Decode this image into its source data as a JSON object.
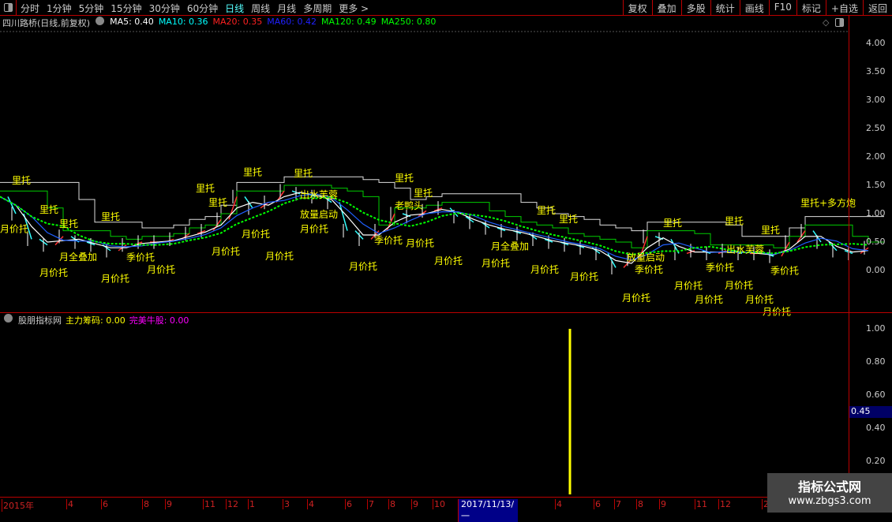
{
  "toolbar": {
    "periods": [
      "分时",
      "1分钟",
      "5分钟",
      "15分钟",
      "30分钟",
      "60分钟",
      "日线",
      "周线",
      "月线",
      "多周期",
      "更多 >"
    ],
    "active_period": "日线",
    "right_buttons": [
      "复权",
      "叠加",
      "多股",
      "统计",
      "画线",
      "F10",
      "标记",
      "+自选",
      "返回"
    ]
  },
  "main_chart": {
    "title": "四川路桥(日线,前复权)",
    "ma": [
      {
        "label": "MA5: 0.40",
        "color": "#ffffff"
      },
      {
        "label": "MA10: 0.36",
        "color": "#00ffff"
      },
      {
        "label": "MA20: 0.35",
        "color": "#ff2020"
      },
      {
        "label": "MA60: 0.42",
        "color": "#2020ff"
      },
      {
        "label": "MA120: 0.49",
        "color": "#00ff00"
      },
      {
        "label": "MA250: 0.80",
        "color": "#00ff00"
      }
    ],
    "y_ticks": [
      "4.00",
      "3.50",
      "3.00",
      "2.50",
      "2.00",
      "1.50",
      "1.00",
      "0.50",
      "0.00"
    ]
  },
  "chart_data": {
    "type": "line",
    "ylim": [
      -0.6,
      4.2
    ],
    "close": [
      1.3,
      1.0,
      0.55,
      0.45,
      0.6,
      0.5,
      0.45,
      0.35,
      0.45,
      0.5,
      0.5,
      0.55,
      0.65,
      0.7,
      0.9,
      1.3,
      1.1,
      1.2,
      1.4,
      1.35,
      1.3,
      1.2,
      0.7,
      0.55,
      0.7,
      1.0,
      0.95,
      1.05,
      1.1,
      0.95,
      0.85,
      0.75,
      0.7,
      0.65,
      0.55,
      0.5,
      0.45,
      0.4,
      0.3,
      0.05,
      0.2,
      0.6,
      0.55,
      0.3,
      0.35,
      0.3,
      0.35,
      0.3,
      0.3,
      0.25,
      0.5,
      0.7,
      0.5,
      0.35,
      0.3,
      0.4
    ],
    "signals": [
      {
        "text": "里托",
        "i": 0.75,
        "p": 1.6
      },
      {
        "text": "里托",
        "i": 2.5,
        "p": 1.08
      },
      {
        "text": "里托",
        "i": 3.75,
        "p": 1.04
      },
      {
        "text": "月价托",
        "i": 0,
        "p": 0.74
      },
      {
        "text": "里托",
        "i": 6.4,
        "p": 0.96
      },
      {
        "text": "里托",
        "i": 12.4,
        "p": 1.46
      },
      {
        "text": "里托",
        "i": 13.2,
        "p": 1.42
      },
      {
        "text": "里托",
        "i": 15.4,
        "p": 1.74
      },
      {
        "text": "里托",
        "i": 18.6,
        "p": 1.72
      },
      {
        "text": "出水芙蓉",
        "i": 19,
        "p": 1.35
      },
      {
        "text": "放量启动",
        "i": 19,
        "p": 1.0
      },
      {
        "text": "月价托",
        "i": 19,
        "p": 0.74
      },
      {
        "text": "月价托",
        "i": 15.3,
        "p": 0.65
      },
      {
        "text": "月价托",
        "i": 16.8,
        "p": 0.68
      },
      {
        "text": "月价托",
        "i": 13.4,
        "p": 0.35
      },
      {
        "text": "季价托",
        "i": 8,
        "p": 0.24
      },
      {
        "text": "月价托",
        "i": 9.3,
        "p": 0.03
      },
      {
        "text": "月价托",
        "i": 2.5,
        "p": -0.03
      },
      {
        "text": "月价托",
        "i": 6.4,
        "p": -0.13
      },
      {
        "text": "月全叠加",
        "i": 3.75,
        "p": 0.25
      },
      {
        "text": "月价托",
        "i": 22.1,
        "p": 0.08
      },
      {
        "text": "季价托",
        "i": 23.7,
        "p": 0.54
      },
      {
        "text": "月价托",
        "i": 25.7,
        "p": 0.49
      },
      {
        "text": "里托",
        "i": 25,
        "p": 1.64
      },
      {
        "text": "里托",
        "i": 26.2,
        "p": 1.58
      },
      {
        "text": "老鸭头",
        "i": 25,
        "p": 1.15
      },
      {
        "text": "月价托",
        "i": 27.5,
        "p": 0.6
      },
      {
        "text": "月全叠加",
        "i": 31.1,
        "p": 0.44
      },
      {
        "text": "月价托",
        "i": 30.5,
        "p": 0.14
      },
      {
        "text": "月价托",
        "i": 33.6,
        "p": 0.03
      },
      {
        "text": "里托",
        "i": 34,
        "p": 1.07
      },
      {
        "text": "里托",
        "i": 35.4,
        "p": 0.92
      },
      {
        "text": "月价托",
        "i": 36.1,
        "p": -0.1
      },
      {
        "text": "月价托",
        "i": 39.4,
        "p": -0.47
      },
      {
        "text": "放量启动",
        "i": 39.7,
        "p": 0.24
      },
      {
        "text": "季价托",
        "i": 40.2,
        "p": 0.03
      },
      {
        "text": "里托",
        "i": 42,
        "p": 0.85
      },
      {
        "text": "月价托",
        "i": 42.7,
        "p": -0.26
      },
      {
        "text": "月价托",
        "i": 44,
        "p": -0.29
      },
      {
        "text": "季价托",
        "i": 44.7,
        "p": 0.06
      },
      {
        "text": "里托",
        "i": 45.9,
        "p": 0.88
      },
      {
        "text": "出水芙蓉",
        "i": 46,
        "p": 0.38
      },
      {
        "text": "月价托",
        "i": 45.9,
        "p": -0.25
      },
      {
        "text": "月价托",
        "i": 47.2,
        "p": -0.29
      },
      {
        "text": "月价托",
        "i": 48.3,
        "p": -0.3
      },
      {
        "text": "季价托",
        "i": 48.8,
        "p": 0.01
      },
      {
        "text": "里托",
        "i": 48.2,
        "p": 0.72
      },
      {
        "text": "里托+多方炮",
        "i": 50.7,
        "p": 1.2
      }
    ],
    "indicator": {
      "bar_index": 36.1,
      "bar_value": 1.0,
      "ylim": [
        0,
        1.05
      ]
    }
  },
  "indicator": {
    "name": "股朋指标网",
    "items": [
      {
        "label": "主力筹码: 0.00",
        "color": "#ffff00"
      },
      {
        "label": "完美牛股: 0.00",
        "color": "#ff00ff"
      }
    ],
    "y_ticks": [
      "1.00",
      "0.80",
      "0.60",
      "0.40",
      "0.20"
    ],
    "current_value": "0.45"
  },
  "date_axis": [
    "2015年",
    "4",
    "6",
    "8",
    "9",
    "11",
    "12",
    "1",
    "3",
    "4",
    "6",
    "7",
    "8",
    "9",
    "10",
    "2017/11/13/一",
    "4",
    "6",
    "7",
    "8",
    "9",
    "11",
    "12",
    "2"
  ],
  "watermark": {
    "line1": "指标公式网",
    "line2": "www.zbgs3.com"
  }
}
